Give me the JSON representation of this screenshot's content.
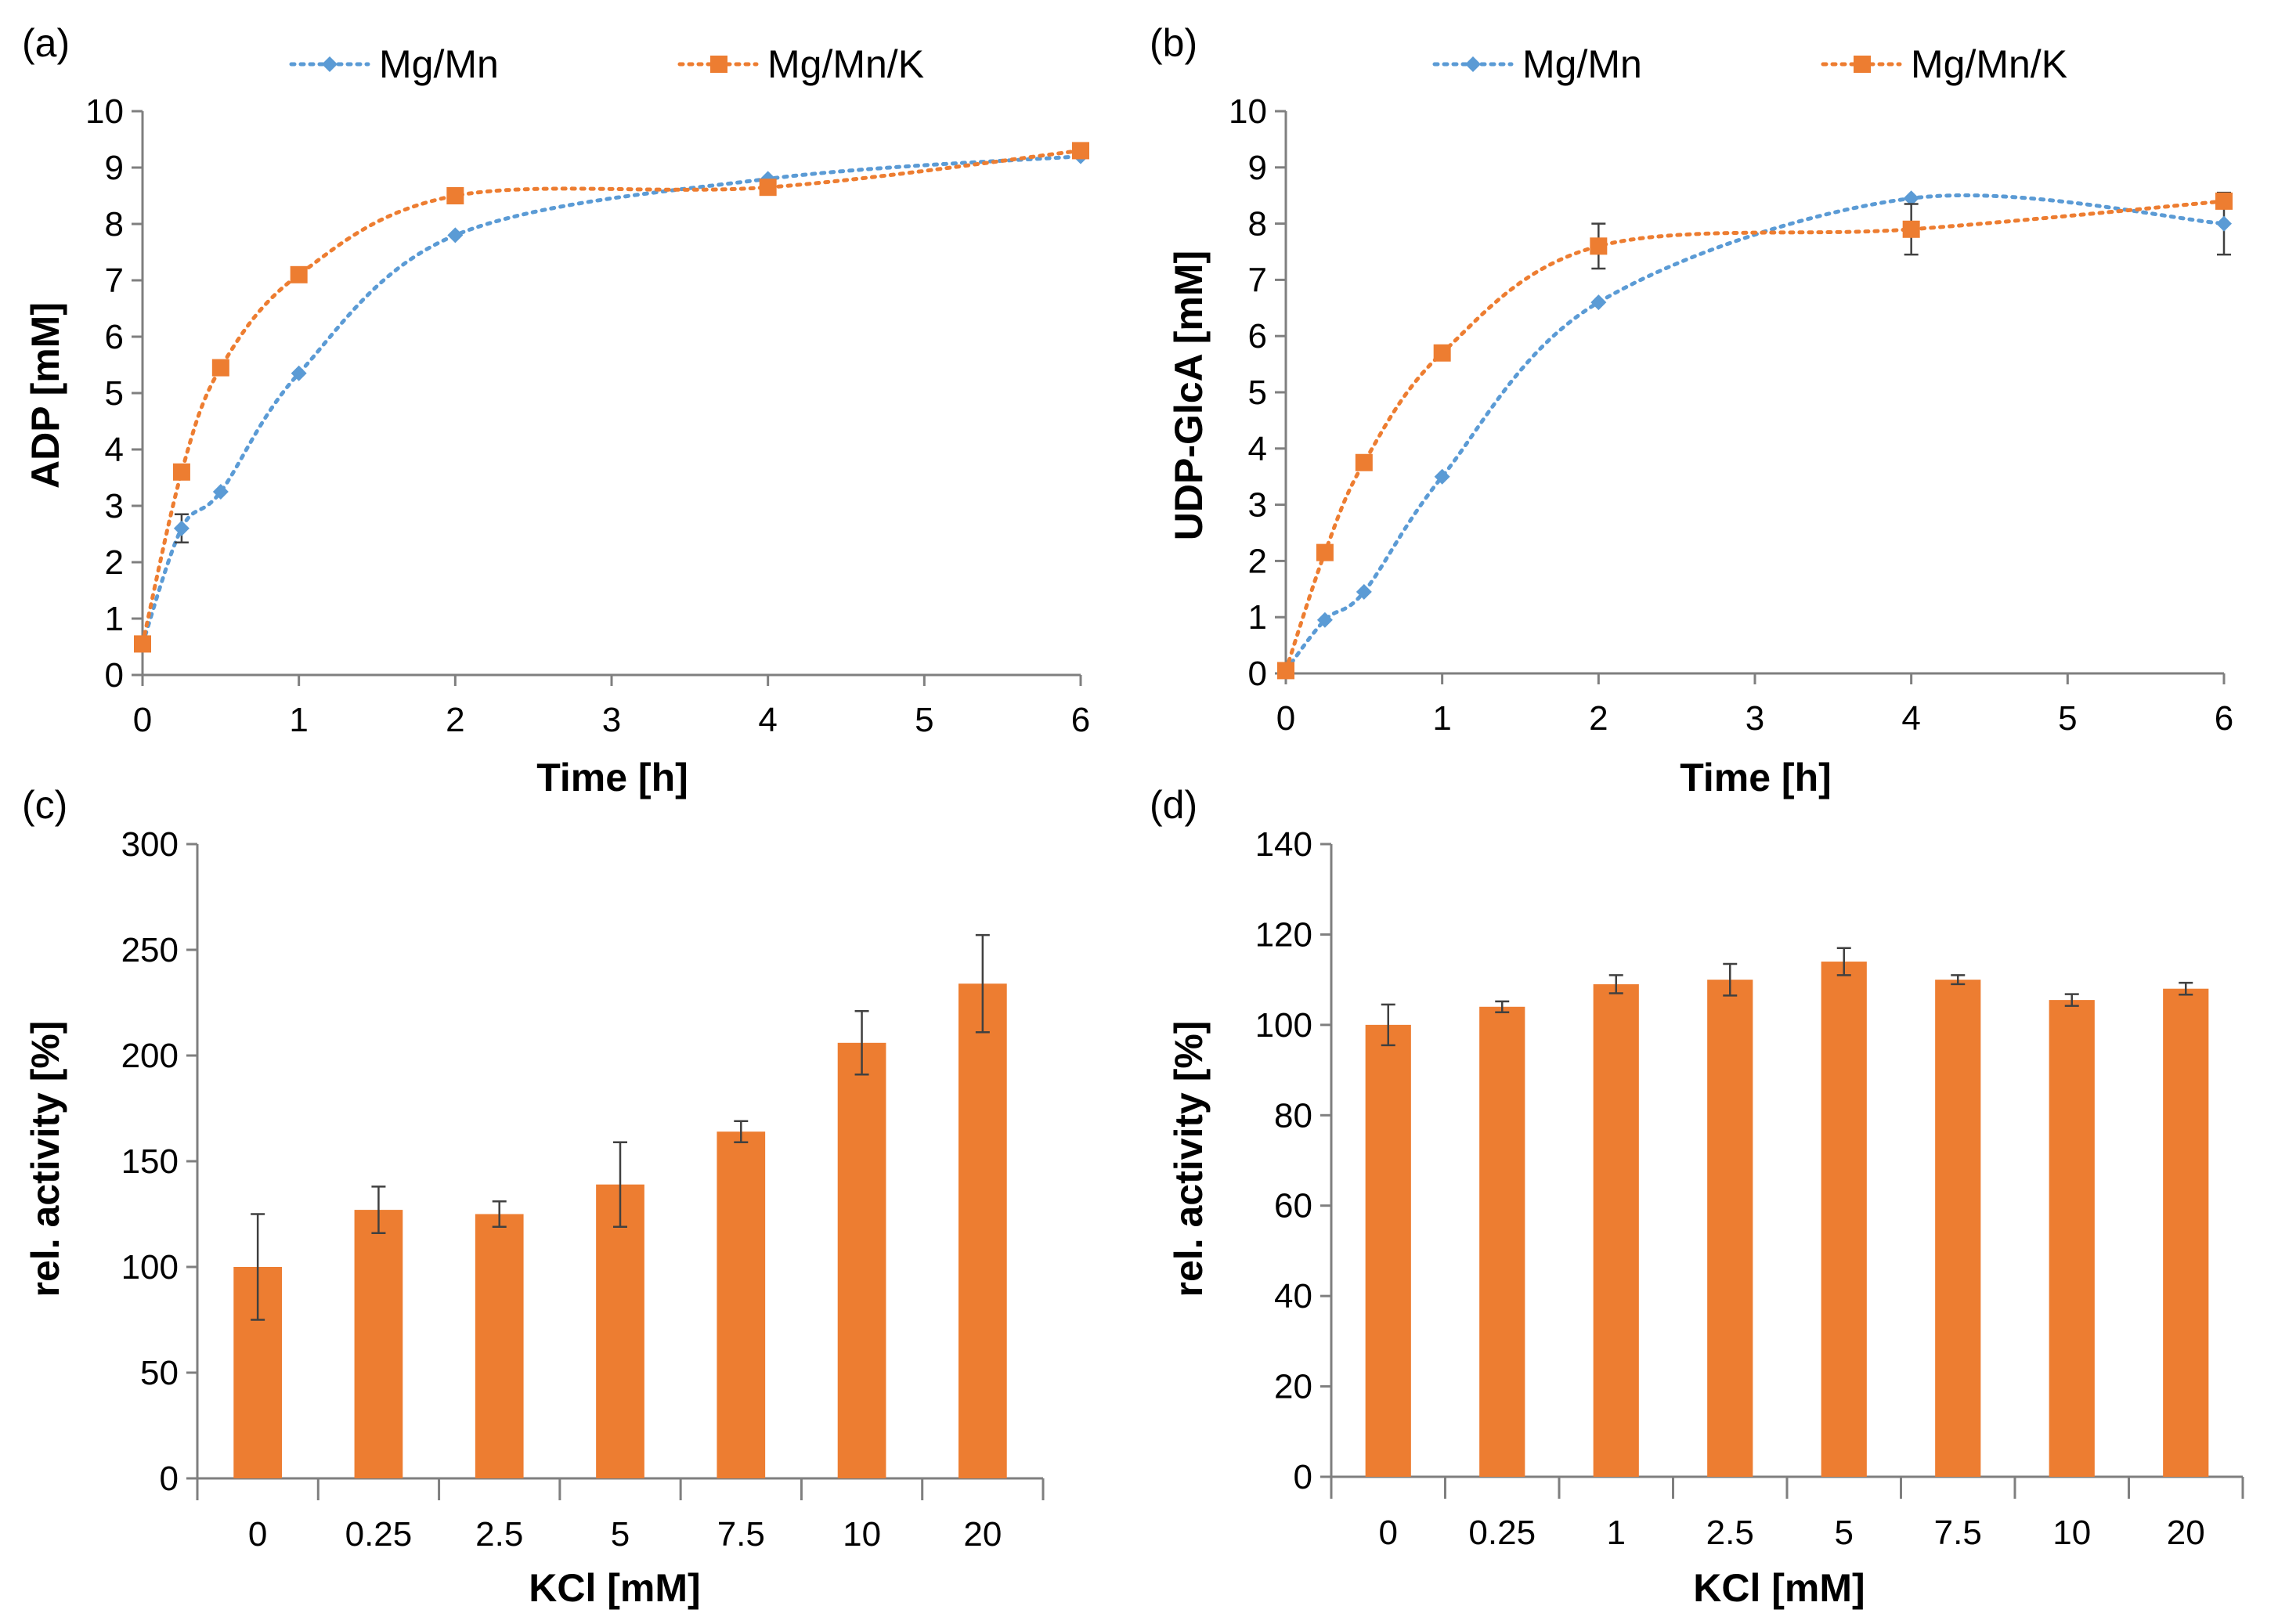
{
  "colors": {
    "mgmn": "#5b9bd5",
    "mgmnk": "#ed7d31",
    "axis": "#7f7f7f",
    "errorbar": "#404040"
  },
  "chart_data": [
    {
      "panel": "(a)",
      "type": "line",
      "xlabel": "Time [h]",
      "ylabel": "ADP [mM]",
      "xlim": [
        0,
        6
      ],
      "ylim": [
        0,
        10
      ],
      "xticks": [
        "0",
        "1",
        "2",
        "3",
        "4",
        "5",
        "6"
      ],
      "yticks": [
        "0",
        "1",
        "2",
        "3",
        "4",
        "5",
        "6",
        "7",
        "8",
        "9",
        "10"
      ],
      "legend": "top",
      "line_style": "dotted smoothed",
      "series": [
        {
          "name": "Mg/Mn",
          "marker": "diamond",
          "x": [
            0,
            0.25,
            0.5,
            1,
            2,
            4,
            6
          ],
          "y": [
            0.55,
            2.6,
            3.25,
            5.35,
            7.8,
            8.8,
            9.2
          ],
          "err": [
            0,
            0.25,
            0.1,
            0.1,
            0.1,
            0.1,
            0.1
          ]
        },
        {
          "name": "Mg/Mn/K",
          "marker": "square",
          "x": [
            0,
            0.25,
            0.5,
            1,
            2,
            4,
            6
          ],
          "y": [
            0.55,
            3.6,
            5.45,
            7.1,
            8.5,
            8.65,
            9.3
          ],
          "err": [
            0,
            0.1,
            0.1,
            0.1,
            0.1,
            0.1,
            0.1
          ]
        }
      ]
    },
    {
      "panel": "(b)",
      "type": "line",
      "xlabel": "Time [h]",
      "ylabel": "UDP-GlcA [mM]",
      "xlim": [
        0,
        6
      ],
      "ylim": [
        0,
        10
      ],
      "xticks": [
        "0",
        "1",
        "2",
        "3",
        "4",
        "5",
        "6"
      ],
      "yticks": [
        "0",
        "1",
        "2",
        "3",
        "4",
        "5",
        "6",
        "7",
        "8",
        "9",
        "10"
      ],
      "legend": "top",
      "line_style": "dotted smoothed",
      "series": [
        {
          "name": "Mg/Mn",
          "marker": "diamond",
          "x": [
            0,
            0.25,
            0.5,
            1,
            2,
            4,
            6
          ],
          "y": [
            0.05,
            0.95,
            1.45,
            3.5,
            6.6,
            8.45,
            8.0
          ],
          "err": [
            0,
            0.05,
            0.05,
            0.05,
            0.1,
            0.1,
            0.55
          ]
        },
        {
          "name": "Mg/Mn/K",
          "marker": "square",
          "x": [
            0,
            0.25,
            0.5,
            1,
            2,
            4,
            6
          ],
          "y": [
            0.05,
            2.15,
            3.75,
            5.7,
            7.6,
            7.9,
            8.4
          ],
          "err": [
            0,
            0.05,
            0.05,
            0.05,
            0.4,
            0.45,
            0.1
          ]
        }
      ]
    },
    {
      "panel": "(c)",
      "type": "bar",
      "xlabel": "KCl [mM]",
      "ylabel": "rel. activity [%]",
      "ylim": [
        0,
        300
      ],
      "yticks": [
        "0",
        "50",
        "100",
        "150",
        "200",
        "250",
        "300"
      ],
      "categories": [
        "0",
        "0.25",
        "2.5",
        "5",
        "7.5",
        "10",
        "20"
      ],
      "values": [
        100,
        127,
        125,
        139,
        164,
        206,
        234
      ],
      "errors": [
        25,
        11,
        6,
        20,
        5,
        15,
        23
      ]
    },
    {
      "panel": "(d)",
      "type": "bar",
      "xlabel": "KCl [mM]",
      "ylabel": "rel. activity [%]",
      "ylim": [
        0,
        140
      ],
      "yticks": [
        "0",
        "20",
        "40",
        "60",
        "80",
        "100",
        "120",
        "140"
      ],
      "categories": [
        "0",
        "0.25",
        "1",
        "2.5",
        "5",
        "7.5",
        "10",
        "20"
      ],
      "values": [
        100,
        104,
        109,
        110,
        114,
        110,
        105.5,
        108
      ],
      "errors": [
        4.5,
        1.2,
        2,
        3.5,
        3,
        1,
        1.3,
        1.3
      ]
    }
  ]
}
